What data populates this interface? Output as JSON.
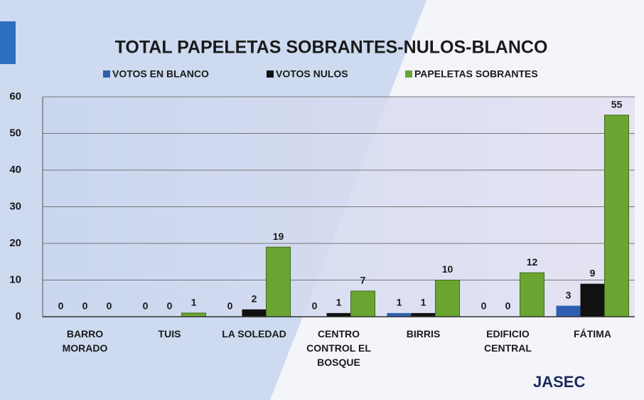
{
  "chart_data": {
    "type": "bar",
    "title": "TOTAL PAPELETAS SOBRANTES-NULOS-BLANCO",
    "categories": [
      "BARRO MORADO",
      "TUIS",
      "LA SOLEDAD",
      "CENTRO CONTROL EL BOSQUE",
      "BIRRIS",
      "EDIFICIO CENTRAL",
      "FÁTIMA"
    ],
    "series": [
      {
        "name": "VOTOS EN BLANCO",
        "color": "#2f5fae",
        "values": [
          0,
          0,
          0,
          0,
          1,
          0,
          3
        ]
      },
      {
        "name": "VOTOS NULOS",
        "color": "#111111",
        "values": [
          0,
          0,
          2,
          1,
          1,
          0,
          9
        ]
      },
      {
        "name": "PAPELETAS SOBRANTES",
        "color": "#6aa532",
        "values": [
          0,
          1,
          19,
          7,
          10,
          12,
          55
        ]
      }
    ],
    "ylim": [
      0,
      60
    ],
    "yticks": [
      0,
      10,
      20,
      30,
      40,
      50,
      60
    ],
    "grid": true,
    "logo": "JASEC"
  }
}
